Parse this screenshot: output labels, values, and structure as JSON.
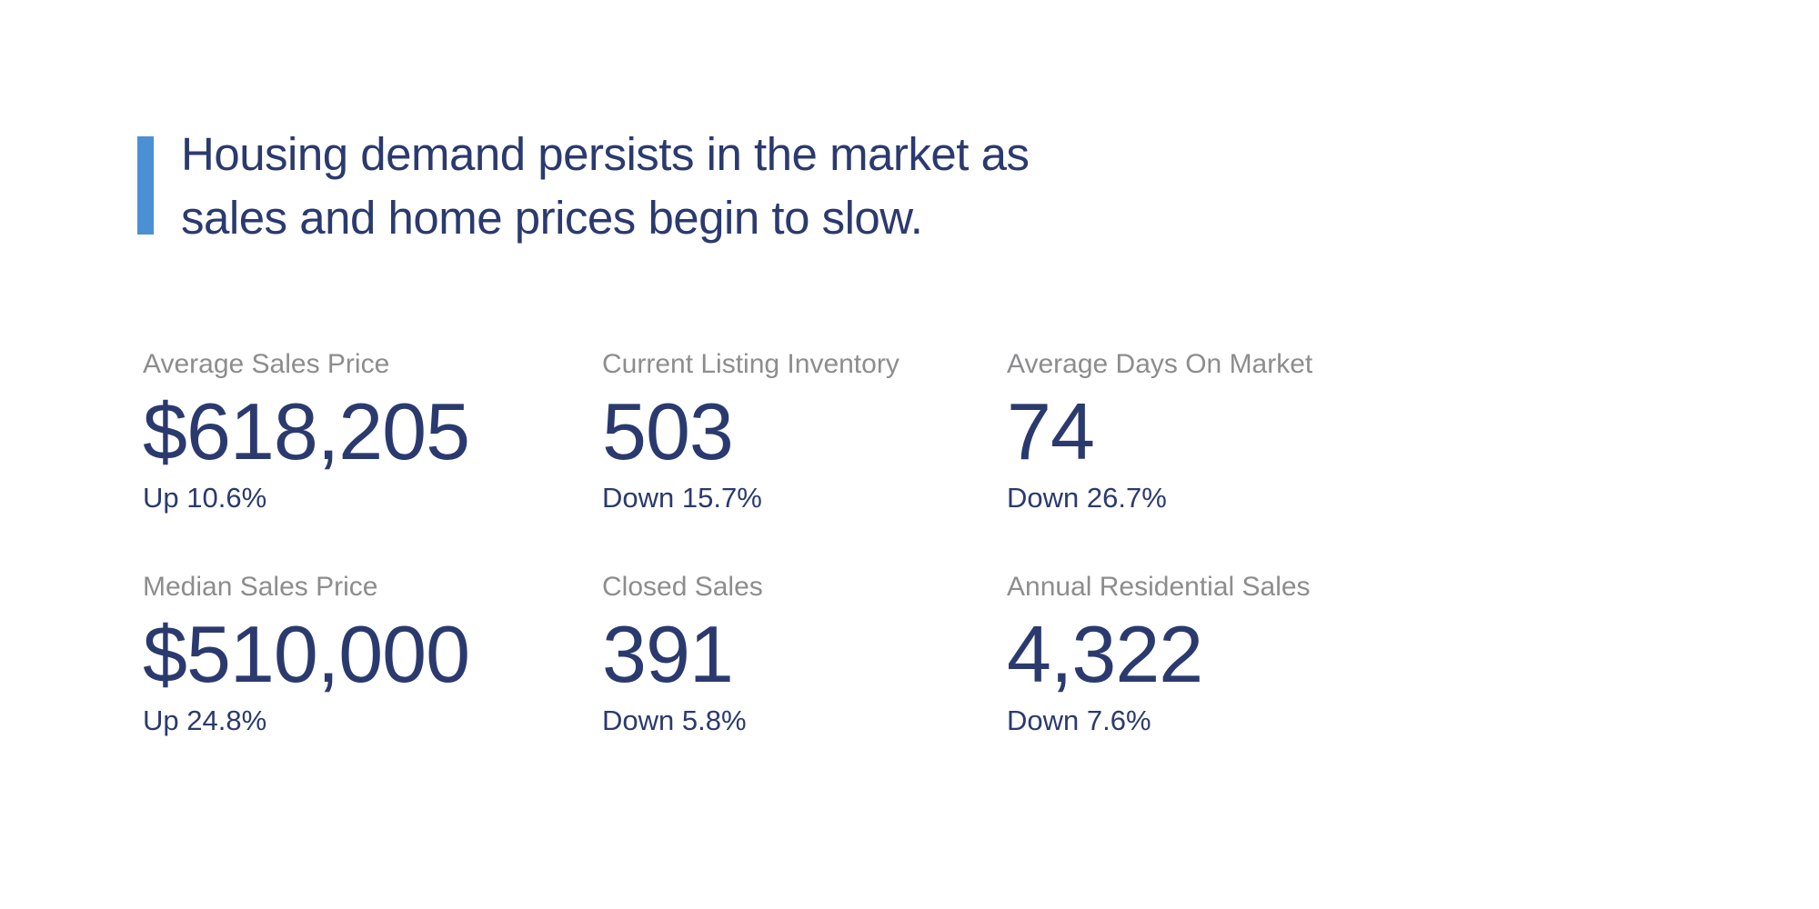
{
  "page": {
    "background_color": "#ffffff",
    "accent_color": "#4a90d4",
    "navy_text_color": "#2b3a6e",
    "label_gray_color": "#8d8d8f"
  },
  "headline": {
    "line1": "Housing demand persists in the market as",
    "line2": "sales and home prices begin to slow."
  },
  "stats": {
    "items": [
      {
        "label": "Average Sales Price",
        "value": "$618,205",
        "change": "Up 10.6%"
      },
      {
        "label": "Current Listing Inventory",
        "value": "503",
        "change": "Down 15.7%"
      },
      {
        "label": "Average Days On Market",
        "value": "74",
        "change": "Down 26.7%"
      },
      {
        "label": "Median Sales Price",
        "value": "$510,000",
        "change": "Up 24.8%"
      },
      {
        "label": "Closed Sales",
        "value": "391",
        "change": "Down 5.8%"
      },
      {
        "label": "Annual Residential Sales",
        "value": "4,322",
        "change": "Down 7.6%"
      }
    ]
  }
}
